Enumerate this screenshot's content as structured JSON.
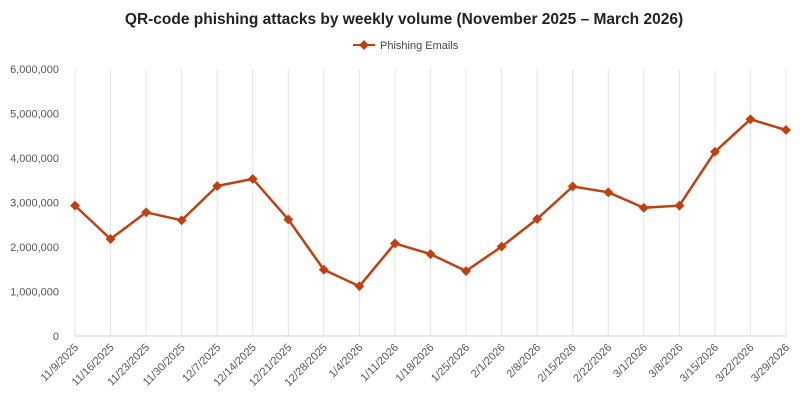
{
  "chart_data": {
    "type": "line",
    "title": "QR-code phishing attacks by weekly volume (November 2025 – March 2026)",
    "xlabel": "",
    "ylabel": "",
    "categories": [
      "11/9/2025",
      "11/16/2025",
      "11/23/2025",
      "11/30/2025",
      "12/7/2025",
      "12/14/2025",
      "12/21/2025",
      "12/28/2025",
      "1/4/2026",
      "1/11/2026",
      "1/18/2026",
      "1/25/2026",
      "2/1/2026",
      "2/8/2026",
      "2/15/2026",
      "2/22/2026",
      "3/1/2026",
      "3/8/2026",
      "3/15/2026",
      "3/22/2026",
      "3/29/2026"
    ],
    "series": [
      {
        "name": "Phishing Emails",
        "color": "#c0400f",
        "values": [
          2930000,
          2180000,
          2780000,
          2600000,
          3370000,
          3530000,
          2620000,
          1490000,
          1120000,
          2080000,
          1840000,
          1460000,
          2010000,
          2630000,
          3360000,
          3230000,
          2880000,
          2930000,
          4140000,
          4870000,
          4630000
        ]
      }
    ],
    "ylim": [
      0,
      6000000
    ],
    "yticks": [
      0,
      1000000,
      2000000,
      3000000,
      4000000,
      5000000,
      6000000
    ],
    "ytick_labels": [
      "0",
      "1,000,000",
      "2,000,000",
      "3,000,000",
      "4,000,000",
      "5,000,000",
      "6,000,000"
    ],
    "grid": "vertical",
    "legend_position": "top-center",
    "colors": {
      "line": "#c0400f",
      "grid": "#e3e3e3"
    }
  }
}
